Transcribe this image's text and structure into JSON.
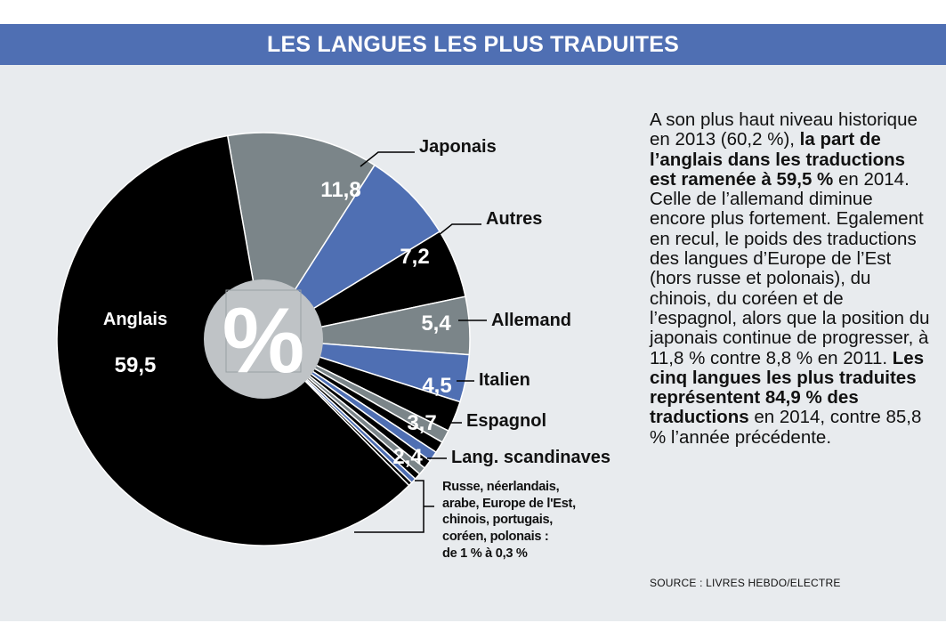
{
  "header": {
    "title": "LES LANGUES LES PLUS TRADUITES"
  },
  "chart_data": {
    "type": "pie",
    "title": "LES LANGUES LES PLUS TRADUITES",
    "unit_symbol": "%",
    "slices": [
      {
        "label": "Japonais",
        "value": 11.8,
        "display": "11,8",
        "color": "#7b8589"
      },
      {
        "label": "Autres",
        "value": 7.2,
        "display": "7,2",
        "color": "#4f6fb3"
      },
      {
        "label": "Allemand",
        "value": 5.4,
        "display": "5,4",
        "color": "#000000"
      },
      {
        "label": "Italien",
        "value": 4.5,
        "display": "4,5",
        "color": "#7b8589"
      },
      {
        "label": "Espagnol",
        "value": 3.7,
        "display": "3,7",
        "color": "#4f6fb3"
      },
      {
        "label": "Lang. scandinaves",
        "value": 2.4,
        "display": "2,4",
        "color": "#000000"
      },
      {
        "label": "",
        "value": 1.0,
        "display": "",
        "color": "#7b8589"
      },
      {
        "label": "",
        "value": 0.9,
        "display": "",
        "color": "#000000"
      },
      {
        "label": "",
        "value": 0.8,
        "display": "",
        "color": "#4f6fb3"
      },
      {
        "label": "",
        "value": 0.7,
        "display": "",
        "color": "#000000"
      },
      {
        "label": "",
        "value": 0.6,
        "display": "",
        "color": "#7b8589"
      },
      {
        "label": "",
        "value": 0.5,
        "display": "",
        "color": "#000000"
      },
      {
        "label": "",
        "value": 0.4,
        "display": "",
        "color": "#4f6fb3"
      },
      {
        "label": "",
        "value": 0.3,
        "display": "",
        "color": "#000000"
      },
      {
        "label": "Anglais",
        "value": 59.5,
        "display": "59,5",
        "color": "#000000"
      }
    ],
    "others_note": [
      "Russe, néerlandais,",
      "arabe, Europe de l'Est,",
      "chinois, portugais,",
      "coréen, polonais :",
      "de 1 %  à 0,3 %"
    ]
  },
  "text": {
    "p1": "A son plus haut niveau historique en 2013 (60,2 %), ",
    "b1": "la part de l’anglais dans les traductions est ramenée à 59,5 %",
    "p2": " en 2014. Celle de l’allemand diminue encore plus fortement. Egalement en recul, le poids des traductions des langues d’Europe de l’Est (hors russe et polonais), du chinois, du coréen et de l’espagnol, alors que la position du japonais continue de progresser, à 11,8 % contre 8,8 % en 2011. ",
    "b2": "Les cinq langues les plus traduites représentent 84,9 % des traductions",
    "p3": " en 2014, contre 85,8 % l’année précédente."
  },
  "source": "SOURCE : LIVRES HEBDO/ELECTRE",
  "colors": {
    "blue": "#4f6fb3",
    "grey": "#7b8589",
    "black": "#000000",
    "background": "#e8ebee",
    "hole": "#bfc3c6"
  }
}
